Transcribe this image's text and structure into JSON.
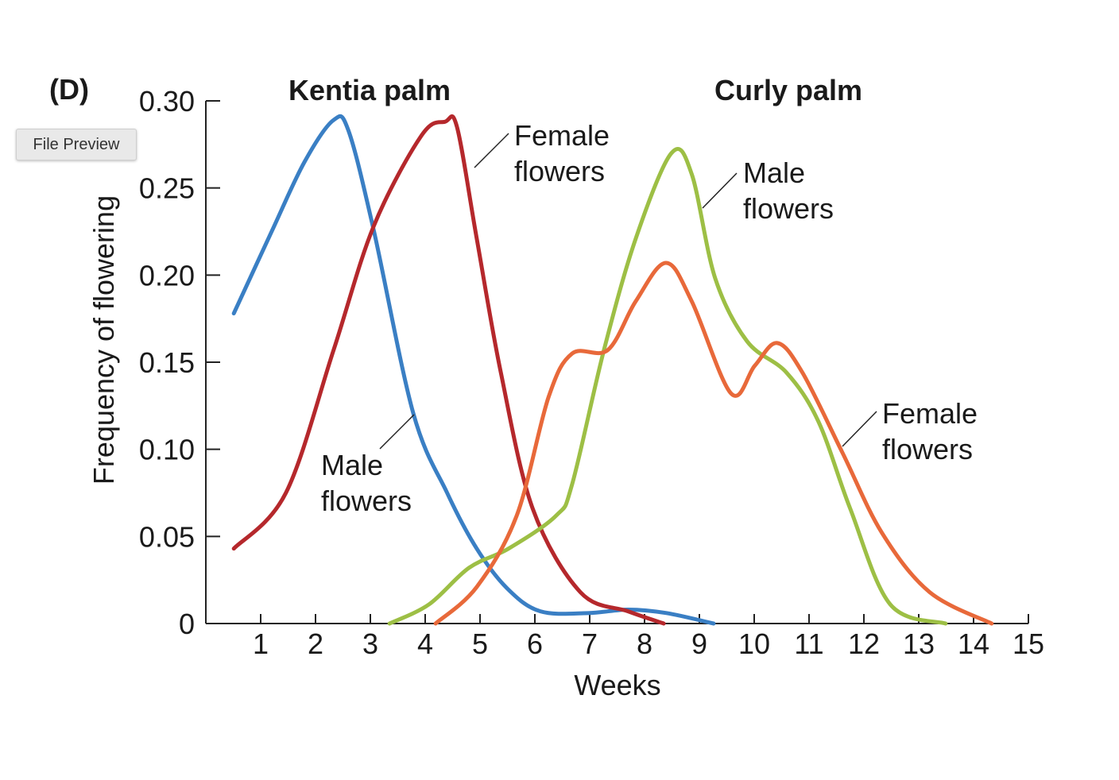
{
  "panel_label": "(D)",
  "tooltip": "File Preview",
  "chart_data": {
    "type": "line",
    "xlabel": "Weeks",
    "ylabel": "Frequency of flowering",
    "xlim": [
      0,
      15
    ],
    "ylim": [
      0,
      0.3
    ],
    "xticks": [
      "1",
      "2",
      "3",
      "4",
      "5",
      "6",
      "7",
      "8",
      "9",
      "10",
      "11",
      "12",
      "13",
      "14",
      "15"
    ],
    "yticks": [
      "0",
      "0.05",
      "0.10",
      "0.15",
      "0.20",
      "0.25",
      "0.30"
    ],
    "grid": false,
    "group_titles": {
      "kentia": "Kentia palm",
      "curly": "Curly palm"
    },
    "series": [
      {
        "group": "Kentia palm",
        "label": [
          "Male",
          "flowers"
        ],
        "color": "#3a7fc4",
        "points": [
          [
            0.51,
            0.178
          ],
          [
            1.2,
            0.225
          ],
          [
            1.8,
            0.265
          ],
          [
            2.33,
            0.289
          ],
          [
            2.6,
            0.283
          ],
          [
            3.06,
            0.226
          ],
          [
            3.78,
            0.121
          ],
          [
            4.4,
            0.075
          ],
          [
            4.94,
            0.043
          ],
          [
            5.5,
            0.02
          ],
          [
            6.1,
            0.007
          ],
          [
            6.97,
            0.006
          ],
          [
            7.7,
            0.008
          ],
          [
            8.4,
            0.006
          ],
          [
            9.26,
            0.0
          ]
        ]
      },
      {
        "group": "Kentia palm",
        "label": [
          "Female",
          "flowers"
        ],
        "color": "#b5282c",
        "points": [
          [
            0.51,
            0.043
          ],
          [
            1.46,
            0.075
          ],
          [
            2.33,
            0.157
          ],
          [
            3.06,
            0.228
          ],
          [
            3.93,
            0.28
          ],
          [
            4.36,
            0.288
          ],
          [
            4.58,
            0.285
          ],
          [
            4.94,
            0.221
          ],
          [
            5.38,
            0.144
          ],
          [
            5.96,
            0.066
          ],
          [
            6.83,
            0.018
          ],
          [
            7.7,
            0.007
          ],
          [
            8.35,
            0.0
          ]
        ]
      },
      {
        "group": "Curly palm",
        "label": [
          "Male",
          "flowers"
        ],
        "color": "#9dbf45",
        "points": [
          [
            3.35,
            0.0
          ],
          [
            4.07,
            0.011
          ],
          [
            4.8,
            0.032
          ],
          [
            5.52,
            0.043
          ],
          [
            6.39,
            0.062
          ],
          [
            6.68,
            0.08
          ],
          [
            7.26,
            0.157
          ],
          [
            7.84,
            0.221
          ],
          [
            8.49,
            0.27
          ],
          [
            8.86,
            0.258
          ],
          [
            9.29,
            0.198
          ],
          [
            9.87,
            0.162
          ],
          [
            10.59,
            0.144
          ],
          [
            11.17,
            0.116
          ],
          [
            11.75,
            0.066
          ],
          [
            12.48,
            0.011
          ],
          [
            13.49,
            0.0
          ]
        ]
      },
      {
        "group": "Curly palm",
        "label": [
          "Female",
          "flowers"
        ],
        "color": "#e8693a",
        "points": [
          [
            4.19,
            0.0
          ],
          [
            4.94,
            0.021
          ],
          [
            5.67,
            0.062
          ],
          [
            6.25,
            0.13
          ],
          [
            6.68,
            0.155
          ],
          [
            7.33,
            0.157
          ],
          [
            7.84,
            0.185
          ],
          [
            8.39,
            0.207
          ],
          [
            8.86,
            0.185
          ],
          [
            9.58,
            0.132
          ],
          [
            10.01,
            0.148
          ],
          [
            10.42,
            0.161
          ],
          [
            10.88,
            0.144
          ],
          [
            11.61,
            0.098
          ],
          [
            12.33,
            0.052
          ],
          [
            13.2,
            0.018
          ],
          [
            14.33,
            0.0
          ]
        ]
      }
    ]
  }
}
